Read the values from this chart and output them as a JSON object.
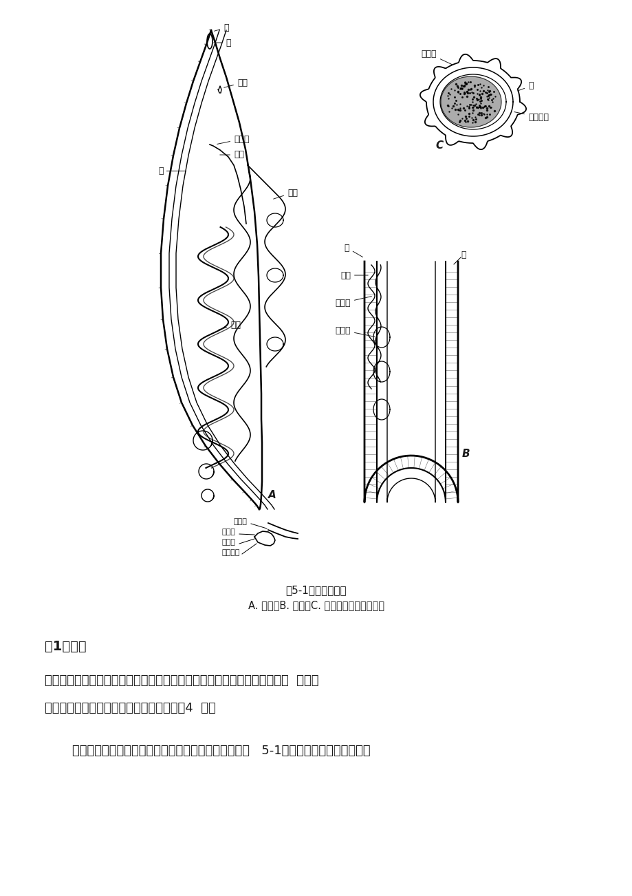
{
  "title": "图5-1蛔虫内部解剖",
  "subtitle": "A. 雌虫；B. 雄虫；C. 虫卵。（自江静波等）",
  "section_heading": "（1）体线",
  "para1_line1": "蛔虫背面和腹面的正中各有一条背线和腹线，在身体的两侧分别可见到侧线  是体壁",
  "para1_line2": "表皮层加厚的部分，将体壁的肌肉层分隔成4  列。",
  "para2": "打开蛔虫体壁，在体壁与肠壁之间为宽广的原体腔（图   5-1）。原体腔不与外界相通，",
  "bg_color": "#ffffff",
  "text_color": "#1a1a1a",
  "fig_fontsize": 11,
  "body_fontsize": 13,
  "heading_fontsize": 14,
  "label_fontsize": 9
}
